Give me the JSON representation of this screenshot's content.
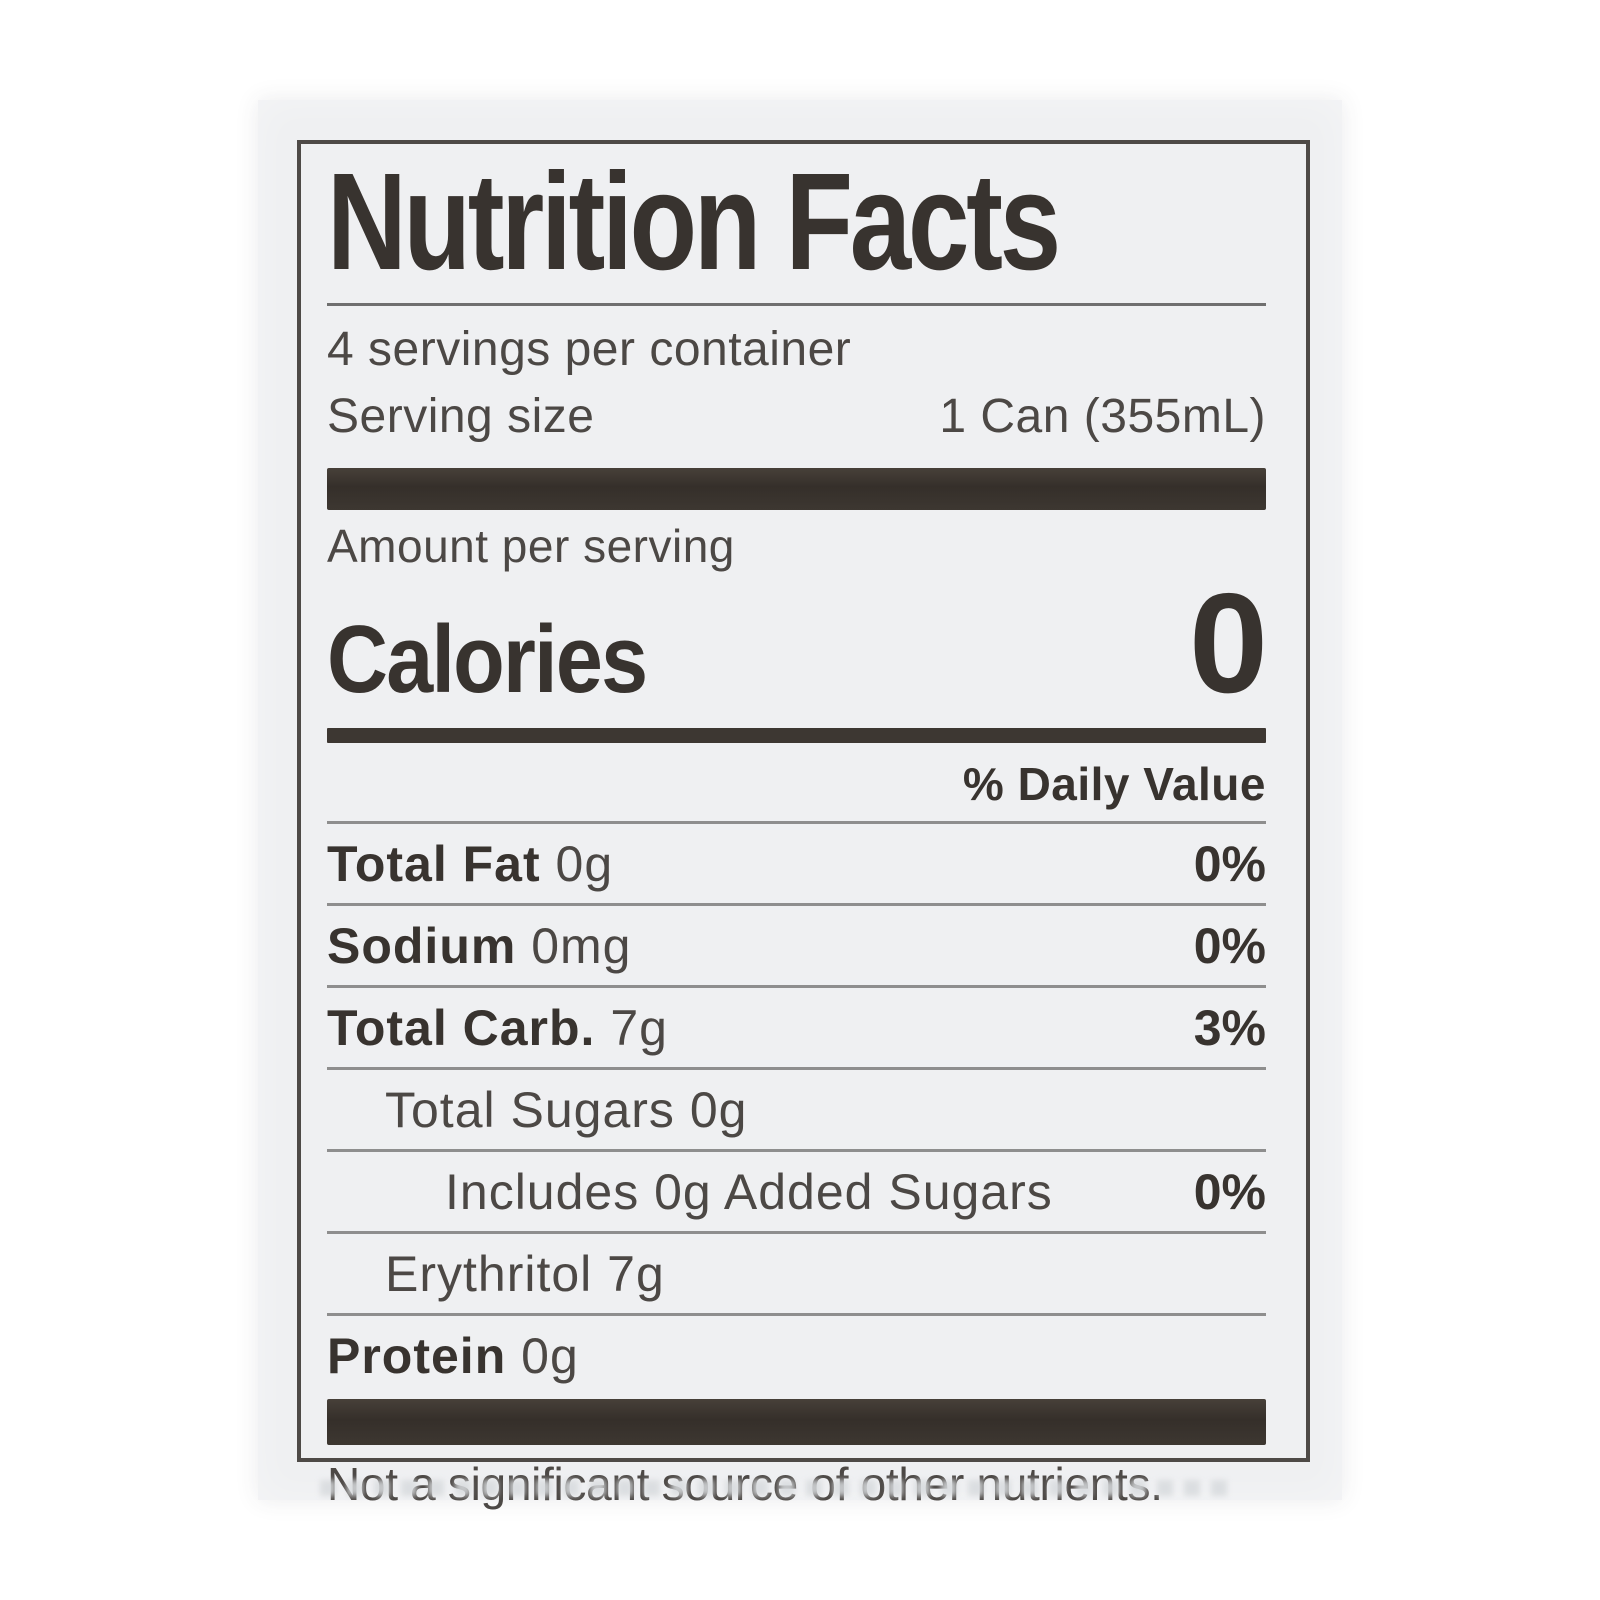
{
  "colors": {
    "bg": "#ffffff",
    "paper": "#eff0f2",
    "ink": "#4c4845",
    "ink-strong": "#38332f",
    "rule": "#8e8e8e",
    "border": "#4e4a47"
  },
  "label": {
    "title": "Nutrition Facts",
    "servings_per_container": "4 servings per container",
    "serving_size": {
      "label": "Serving size",
      "value": "1 Can (355mL)"
    },
    "amount_per_serving": "Amount per serving",
    "calories": {
      "label": "Calories",
      "value": "0"
    },
    "daily_value_header": "% Daily Value",
    "rows": [
      {
        "name": "Total Fat",
        "amount": "0g",
        "percent": "0%",
        "indent": 0
      },
      {
        "name": "Sodium",
        "amount": "0mg",
        "percent": "0%",
        "indent": 0
      },
      {
        "name": "Total Carb.",
        "amount": "7g",
        "percent": "3%",
        "indent": 0
      },
      {
        "name": "",
        "amount": "Total Sugars 0g",
        "percent": "",
        "indent": 1
      },
      {
        "name": "",
        "amount": "Includes 0g Added Sugars",
        "percent": "0%",
        "indent": 2
      },
      {
        "name": "",
        "amount": "Erythritol 7g",
        "percent": "",
        "indent": 1
      },
      {
        "name": "Protein",
        "amount": "0g",
        "percent": "",
        "indent": 0
      }
    ],
    "footnote": "Not a significant source of other nutrients."
  }
}
